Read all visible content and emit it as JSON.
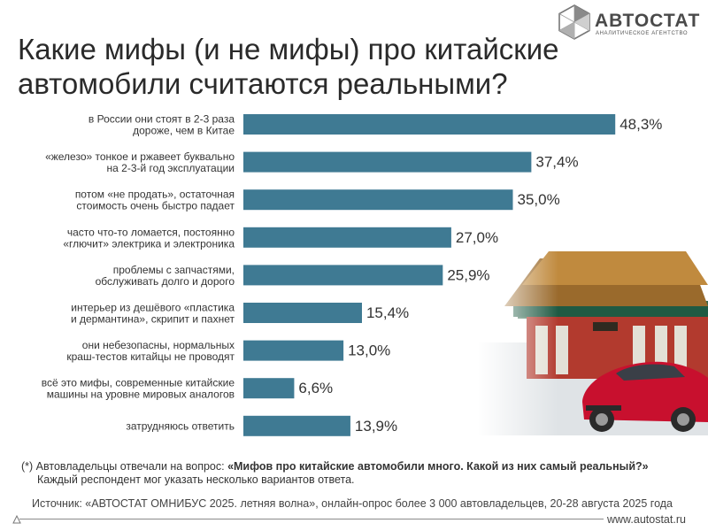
{
  "brand": {
    "name": "АВТОСТАТ",
    "subtitle": "АНАЛИТИЧЕСКОЕ АГЕНТСТВО",
    "icon": "hexagon-logo-icon"
  },
  "title_line1": "Какие мифы (и не мифы) про китайские",
  "title_line2": "автомобили считаются реальными?",
  "footnote_prefix": "(*) Автовладельцы отвечали на вопрос: ",
  "footnote_question": "«Мифов про китайские автомобили много. Какой из них самый реальный?»",
  "footnote_line2": "Каждый респондент мог указать несколько вариантов ответа.",
  "source": "Источник: «АВТОСТАТ ОМНИБУС 2025. летняя волна», онлайн-опрос более 3 000 автовладельцев, 20-28 августа 2025 года",
  "website": "www.autostat.ru",
  "colors": {
    "bar": "#3f7a93",
    "accent_red": "#c8102e"
  },
  "chart_data": {
    "type": "bar",
    "orientation": "horizontal",
    "title": "Какие мифы (и не мифы) про китайские автомобили считаются реальными?",
    "unit": "%",
    "categories": [
      [
        "в России они стоят в 2-3 раза",
        "дороже, чем в Китае"
      ],
      [
        "«железо» тонкое и ржавеет буквально",
        "на 2-3-й год эксплуатации"
      ],
      [
        "потом «не продать», остаточная",
        "стоимость очень быстро падает"
      ],
      [
        "часто что-то ломается, постоянно",
        "«глючит» электрика и электроника"
      ],
      [
        "проблемы с запчастями,",
        "обслуживать долго и дорого"
      ],
      [
        "интерьер из дешёвого «пластика",
        "и дермантина», скрипит и пахнет"
      ],
      [
        "они небезопасны, нормальных",
        "краш-тестов китайцы не проводят"
      ],
      [
        "всё это мифы, современные китайские",
        "машины на уровне мировых аналогов"
      ],
      [
        "затрудняюсь ответить"
      ]
    ],
    "values": [
      48.3,
      37.4,
      35.0,
      27.0,
      25.9,
      15.4,
      13.0,
      6.6,
      13.9
    ],
    "value_labels": [
      "48,3%",
      "37,4%",
      "35,0%",
      "27,0%",
      "25,9%",
      "15,4%",
      "13,0%",
      "6,6%",
      "13,9%"
    ],
    "xlim": [
      0,
      50
    ],
    "grid": false,
    "legend": "none"
  }
}
